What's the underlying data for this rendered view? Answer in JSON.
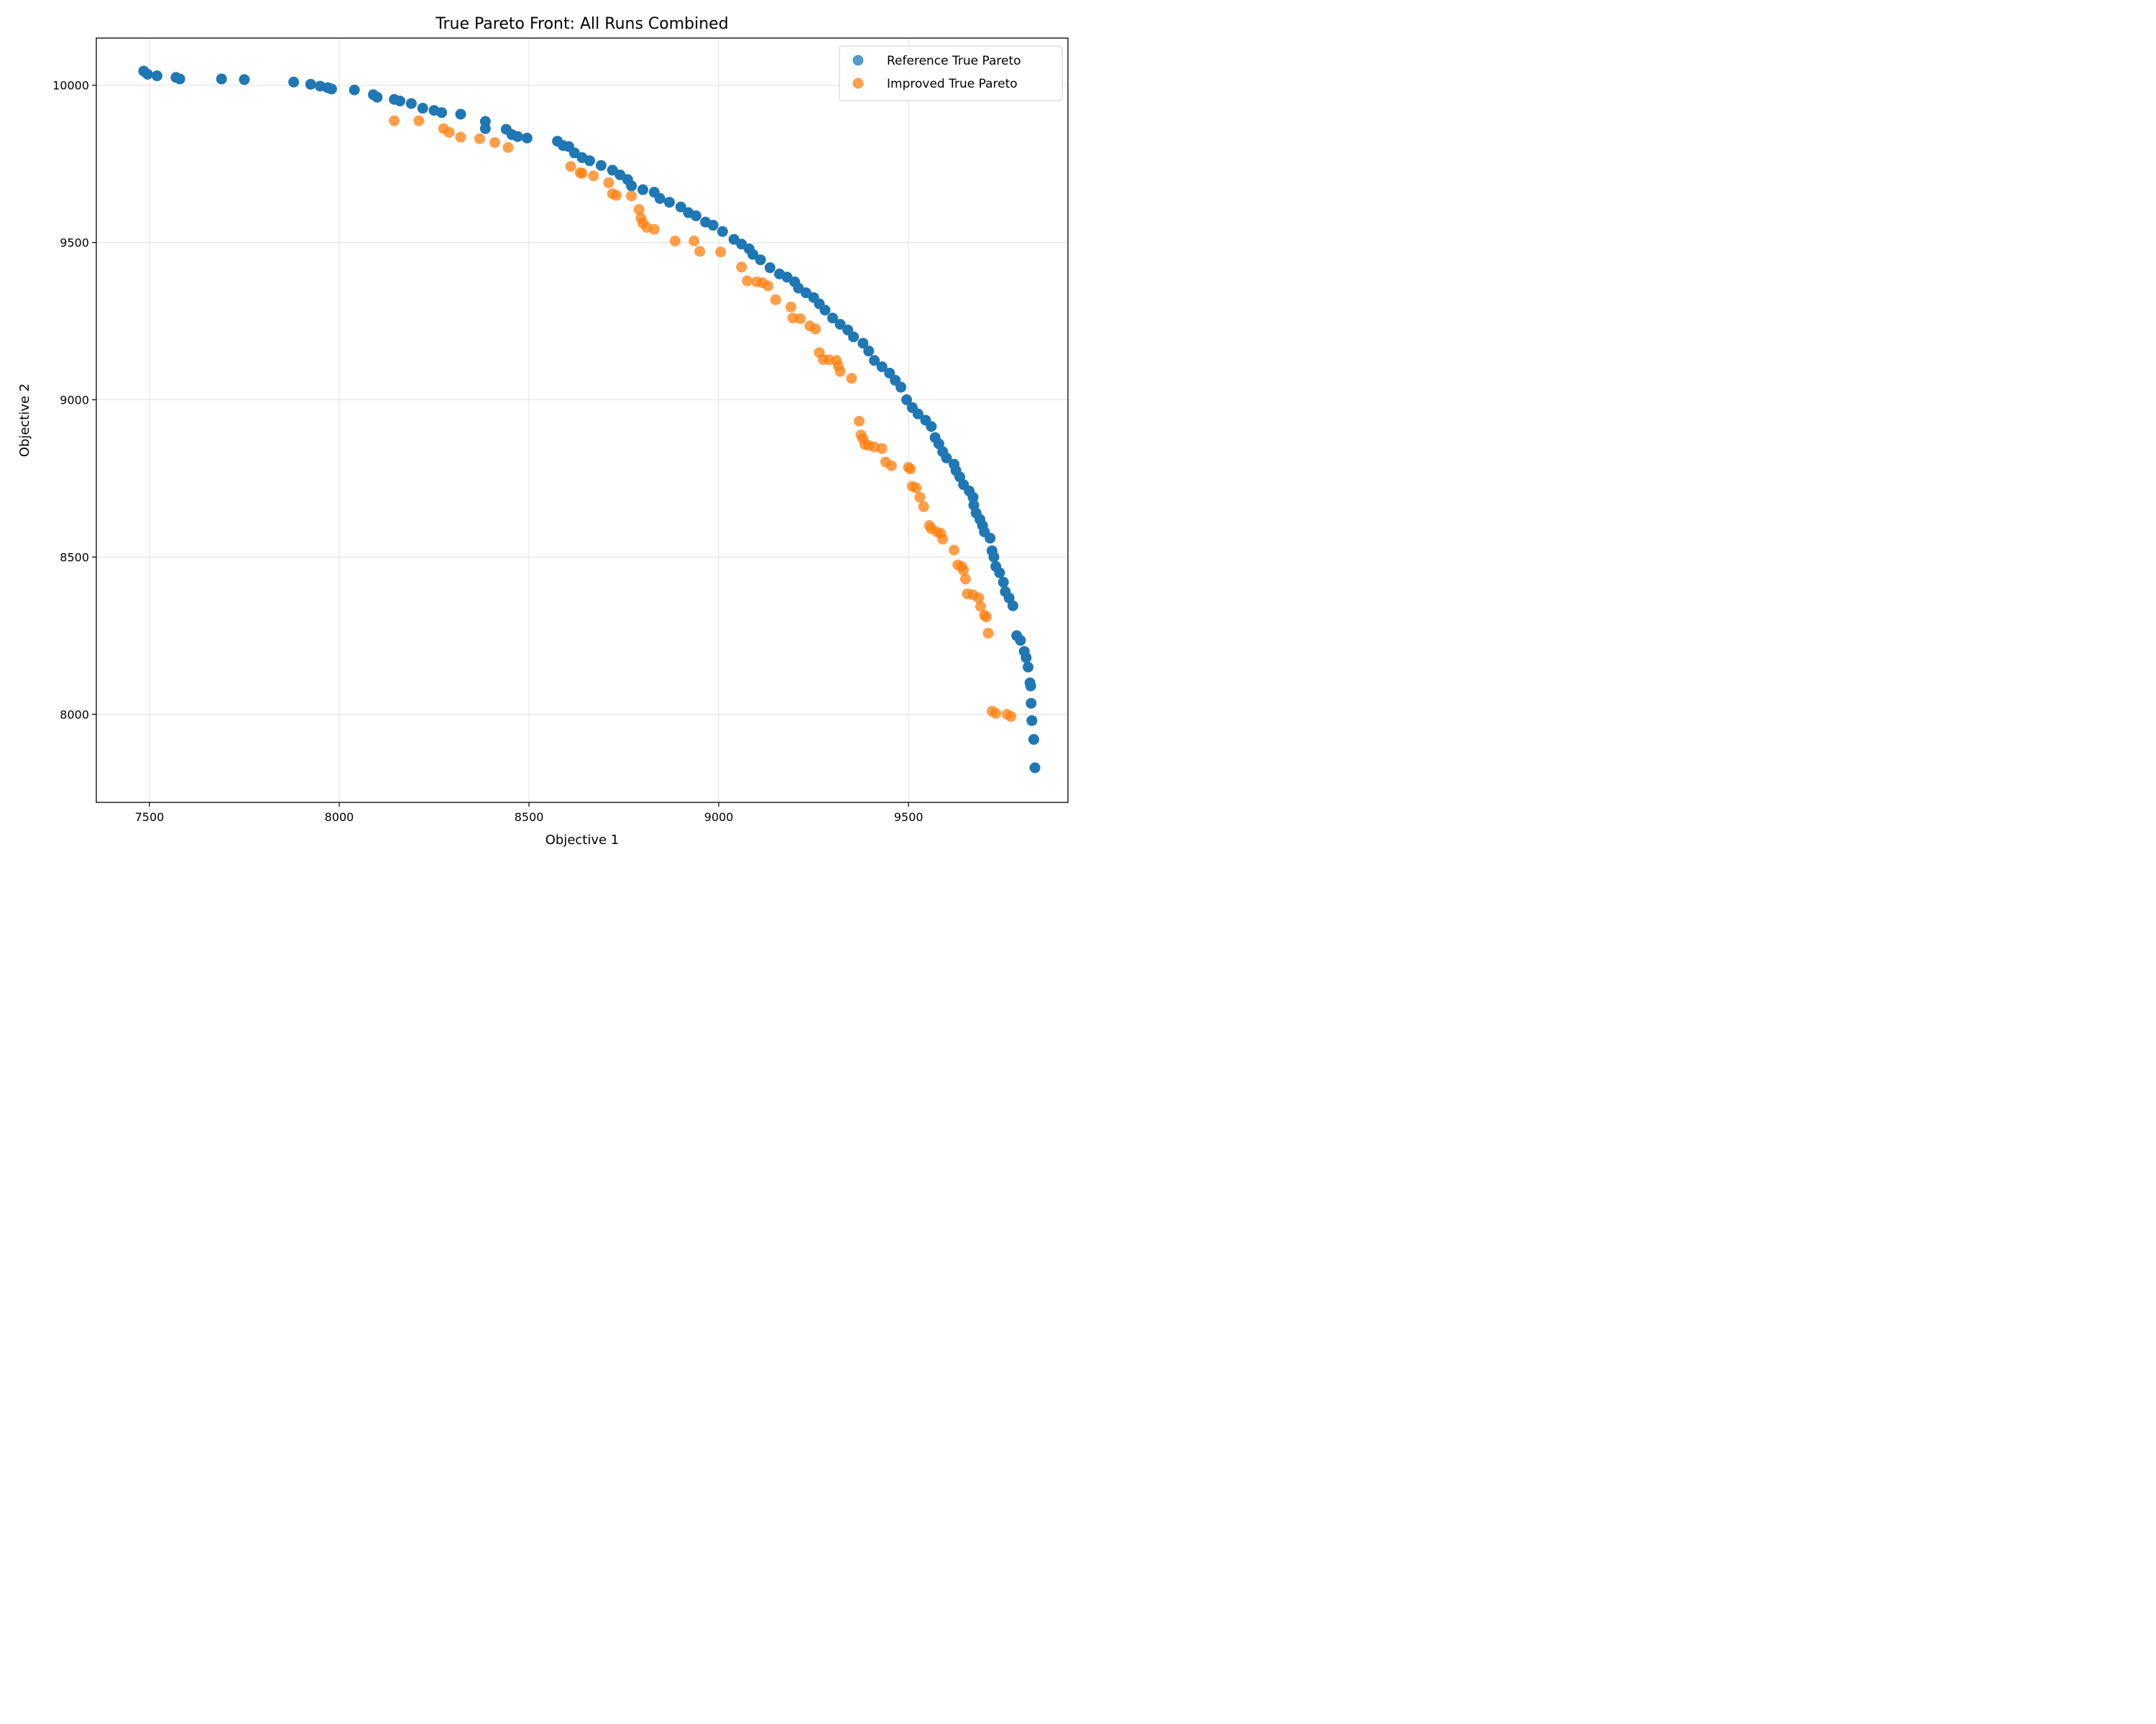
{
  "chart_data": {
    "type": "scatter",
    "title": "True Pareto Front: All Runs Combined",
    "xlabel": "Objective 1",
    "ylabel": "Objective 2",
    "xlim": [
      7360,
      9920
    ],
    "ylim": [
      7720,
      10150
    ],
    "xticks": [
      7500,
      8000,
      8500,
      9000,
      9500
    ],
    "yticks": [
      8000,
      8500,
      9000,
      9500,
      10000
    ],
    "grid": true,
    "legend_position": "top-right",
    "series": [
      {
        "name": "Reference True Pareto",
        "color": "#1f77b4",
        "points": [
          [
            7485,
            10045
          ],
          [
            7495,
            10035
          ],
          [
            7520,
            10030
          ],
          [
            7570,
            10025
          ],
          [
            7580,
            10020
          ],
          [
            7690,
            10020
          ],
          [
            7750,
            10018
          ],
          [
            7880,
            10010
          ],
          [
            7925,
            10003
          ],
          [
            7950,
            9997
          ],
          [
            7970,
            9992
          ],
          [
            7980,
            9988
          ],
          [
            8040,
            9985
          ],
          [
            8090,
            9970
          ],
          [
            8100,
            9962
          ],
          [
            8145,
            9955
          ],
          [
            8160,
            9950
          ],
          [
            8190,
            9942
          ],
          [
            8220,
            9927
          ],
          [
            8250,
            9920
          ],
          [
            8270,
            9913
          ],
          [
            8320,
            9908
          ],
          [
            8385,
            9885
          ],
          [
            8385,
            9862
          ],
          [
            8440,
            9860
          ],
          [
            8455,
            9843
          ],
          [
            8470,
            9837
          ],
          [
            8495,
            9832
          ],
          [
            8575,
            9822
          ],
          [
            8590,
            9808
          ],
          [
            8605,
            9805
          ],
          [
            8620,
            9785
          ],
          [
            8640,
            9770
          ],
          [
            8660,
            9760
          ],
          [
            8690,
            9745
          ],
          [
            8720,
            9730
          ],
          [
            8740,
            9715
          ],
          [
            8760,
            9700
          ],
          [
            8770,
            9680
          ],
          [
            8800,
            9668
          ],
          [
            8830,
            9660
          ],
          [
            8845,
            9640
          ],
          [
            8870,
            9628
          ],
          [
            8900,
            9613
          ],
          [
            8920,
            9595
          ],
          [
            8940,
            9585
          ],
          [
            8965,
            9565
          ],
          [
            8985,
            9555
          ],
          [
            9010,
            9535
          ],
          [
            9040,
            9510
          ],
          [
            9060,
            9495
          ],
          [
            9080,
            9480
          ],
          [
            9090,
            9462
          ],
          [
            9110,
            9445
          ],
          [
            9135,
            9420
          ],
          [
            9160,
            9400
          ],
          [
            9180,
            9390
          ],
          [
            9200,
            9375
          ],
          [
            9210,
            9355
          ],
          [
            9230,
            9340
          ],
          [
            9250,
            9325
          ],
          [
            9265,
            9305
          ],
          [
            9280,
            9285
          ],
          [
            9300,
            9260
          ],
          [
            9320,
            9240
          ],
          [
            9340,
            9222
          ],
          [
            9355,
            9200
          ],
          [
            9380,
            9180
          ],
          [
            9395,
            9155
          ],
          [
            9410,
            9125
          ],
          [
            9430,
            9105
          ],
          [
            9450,
            9085
          ],
          [
            9465,
            9062
          ],
          [
            9480,
            9040
          ],
          [
            9495,
            9000
          ],
          [
            9510,
            8975
          ],
          [
            9525,
            8955
          ],
          [
            9545,
            8935
          ],
          [
            9560,
            8915
          ],
          [
            9570,
            8880
          ],
          [
            9580,
            8860
          ],
          [
            9590,
            8835
          ],
          [
            9600,
            8815
          ],
          [
            9620,
            8795
          ],
          [
            9625,
            8775
          ],
          [
            9635,
            8755
          ],
          [
            9645,
            8730
          ],
          [
            9660,
            8710
          ],
          [
            9670,
            8690
          ],
          [
            9672,
            8665
          ],
          [
            9678,
            8640
          ],
          [
            9688,
            8620
          ],
          [
            9695,
            8600
          ],
          [
            9700,
            8580
          ],
          [
            9715,
            8560
          ],
          [
            9720,
            8520
          ],
          [
            9725,
            8500
          ],
          [
            9730,
            8470
          ],
          [
            9740,
            8450
          ],
          [
            9750,
            8420
          ],
          [
            9755,
            8390
          ],
          [
            9765,
            8370
          ],
          [
            9775,
            8345
          ],
          [
            9785,
            8250
          ],
          [
            9795,
            8235
          ],
          [
            9805,
            8200
          ],
          [
            9810,
            8180
          ],
          [
            9815,
            8150
          ],
          [
            9820,
            8100
          ],
          [
            9822,
            8090
          ],
          [
            9823,
            8035
          ],
          [
            9825,
            7980
          ],
          [
            9830,
            7920
          ],
          [
            9833,
            7830
          ]
        ]
      },
      {
        "name": "Improved True Pareto",
        "color": "#ff7f0e",
        "points": [
          [
            8145,
            9887
          ],
          [
            8210,
            9887
          ],
          [
            8275,
            9862
          ],
          [
            8290,
            9850
          ],
          [
            8320,
            9835
          ],
          [
            8370,
            9830
          ],
          [
            8410,
            9818
          ],
          [
            8445,
            9802
          ],
          [
            8610,
            9742
          ],
          [
            8635,
            9722
          ],
          [
            8640,
            9720
          ],
          [
            8670,
            9712
          ],
          [
            8710,
            9690
          ],
          [
            8720,
            9655
          ],
          [
            8730,
            9650
          ],
          [
            8770,
            9648
          ],
          [
            8790,
            9605
          ],
          [
            8795,
            9578
          ],
          [
            8800,
            9562
          ],
          [
            8810,
            9548
          ],
          [
            8830,
            9542
          ],
          [
            8885,
            9505
          ],
          [
            8935,
            9505
          ],
          [
            8950,
            9472
          ],
          [
            9005,
            9470
          ],
          [
            9060,
            9422
          ],
          [
            9075,
            9378
          ],
          [
            9100,
            9375
          ],
          [
            9115,
            9372
          ],
          [
            9130,
            9362
          ],
          [
            9150,
            9318
          ],
          [
            9190,
            9295
          ],
          [
            9195,
            9260
          ],
          [
            9215,
            9258
          ],
          [
            9240,
            9235
          ],
          [
            9255,
            9225
          ],
          [
            9265,
            9150
          ],
          [
            9275,
            9128
          ],
          [
            9290,
            9127
          ],
          [
            9310,
            9125
          ],
          [
            9315,
            9108
          ],
          [
            9320,
            9090
          ],
          [
            9350,
            9068
          ],
          [
            9370,
            8932
          ],
          [
            9375,
            8888
          ],
          [
            9380,
            8876
          ],
          [
            9385,
            8858
          ],
          [
            9395,
            8855
          ],
          [
            9410,
            8850
          ],
          [
            9430,
            8845
          ],
          [
            9440,
            8802
          ],
          [
            9455,
            8790
          ],
          [
            9500,
            8785
          ],
          [
            9505,
            8780
          ],
          [
            9510,
            8725
          ],
          [
            9520,
            8720
          ],
          [
            9530,
            8690
          ],
          [
            9540,
            8660
          ],
          [
            9555,
            8600
          ],
          [
            9560,
            8590
          ],
          [
            9575,
            8580
          ],
          [
            9585,
            8575
          ],
          [
            9590,
            8557
          ],
          [
            9620,
            8522
          ],
          [
            9630,
            8475
          ],
          [
            9640,
            8470
          ],
          [
            9645,
            8458
          ],
          [
            9650,
            8430
          ],
          [
            9655,
            8383
          ],
          [
            9670,
            8380
          ],
          [
            9685,
            8370
          ],
          [
            9690,
            8343
          ],
          [
            9700,
            8315
          ],
          [
            9705,
            8310
          ],
          [
            9710,
            8258
          ],
          [
            9720,
            8010
          ],
          [
            9730,
            8003
          ],
          [
            9760,
            8000
          ],
          [
            9770,
            7993
          ]
        ]
      }
    ]
  }
}
